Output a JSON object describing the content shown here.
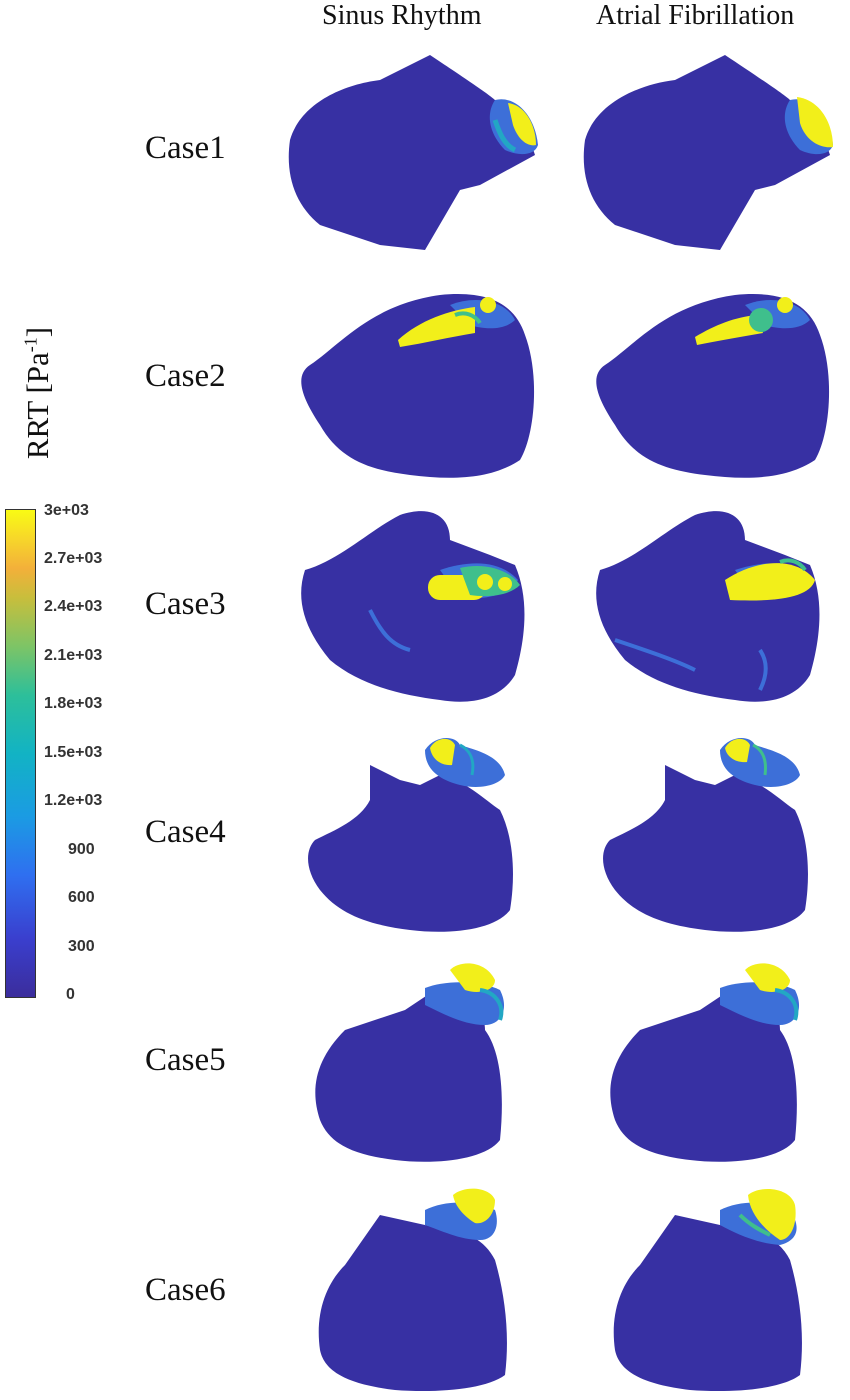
{
  "columns": [
    "Sinus Rhythm",
    "Atrial Fibrillation"
  ],
  "cases": [
    "Case1",
    "Case2",
    "Case3",
    "Case4",
    "Case5",
    "Case6"
  ],
  "colorbar": {
    "title": "RRT [Pa",
    "title_sup": "-1",
    "title_end": "]",
    "ticks": [
      "3e+03",
      "2.7e+03",
      "2.4e+03",
      "2.1e+03",
      "1.8e+03",
      "1.5e+03",
      "1.2e+03",
      "900",
      "600",
      "300",
      "0"
    ],
    "range": [
      0,
      3000
    ]
  },
  "colors": {
    "base": "#3730a3",
    "mid": "#3d6fd8",
    "cyan": "#22a7c4",
    "green": "#3fbf8c",
    "high": "#f2ef1a"
  }
}
